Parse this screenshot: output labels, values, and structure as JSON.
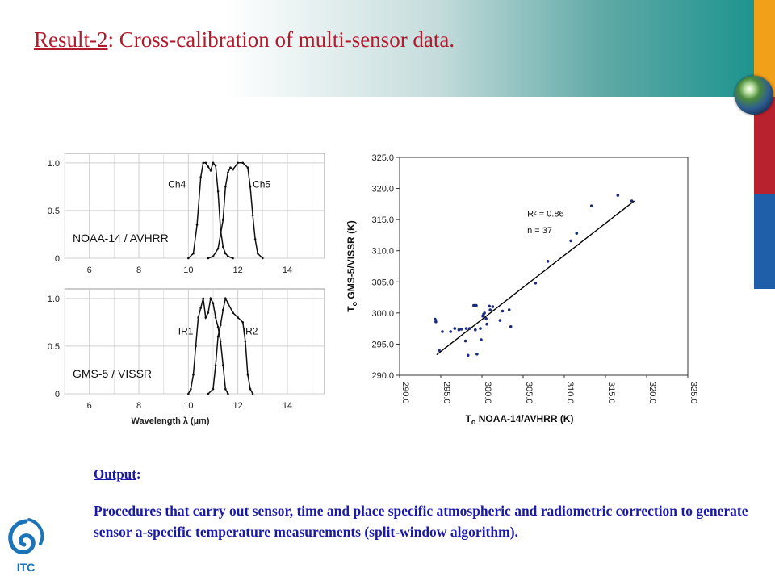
{
  "slide": {
    "title_underlined": "Result-2",
    "title_rest": ": Cross-calibration of multi-sensor data.",
    "output_heading": "Output",
    "output_colon": ":",
    "output_text": "Procedures that carry out sensor, time and place specific atmospheric and radiometric correction to generate sensor a-specific temperature measurements (split-window algorithm).",
    "logo_text": "ITC",
    "colors": {
      "title": "#b01c2c",
      "body_text": "#1a1aa8",
      "stripe_orange": "#f0a019",
      "stripe_red": "#b8222e",
      "stripe_blue": "#1f5ea8"
    }
  },
  "chart_data": [
    {
      "type": "line",
      "panel": "top",
      "label": "NOAA-14 / AVHRR",
      "x_ticks": [
        "6",
        "8",
        "10",
        "12",
        "14"
      ],
      "y_ticks": [
        "0",
        "0.5",
        "1.0"
      ],
      "xlim": [
        5,
        15.5
      ],
      "ylim": [
        0,
        1.1
      ],
      "grid": true,
      "series": [
        {
          "name": "Ch4",
          "x": [
            10.0,
            10.2,
            10.35,
            10.5,
            10.6,
            10.7,
            10.8,
            10.9,
            11.0,
            11.1,
            11.2,
            11.3,
            11.4,
            11.5,
            11.6,
            11.8
          ],
          "y": [
            0,
            0.05,
            0.35,
            0.85,
            1.0,
            1.0,
            0.96,
            0.92,
            1.0,
            0.97,
            0.7,
            0.3,
            0.12,
            0.05,
            0.02,
            0
          ]
        },
        {
          "name": "Ch5",
          "x": [
            10.8,
            11.0,
            11.2,
            11.4,
            11.5,
            11.6,
            11.7,
            11.8,
            12.0,
            12.2,
            12.4,
            12.5,
            12.6,
            12.7,
            12.8,
            13.0
          ],
          "y": [
            0,
            0.02,
            0.1,
            0.4,
            0.75,
            0.9,
            0.95,
            0.93,
            1.0,
            1.0,
            0.95,
            0.75,
            0.45,
            0.2,
            0.05,
            0
          ]
        }
      ]
    },
    {
      "type": "line",
      "panel": "bottom",
      "label": "GMS-5 / VISSR",
      "xlabel": "Wavelength λ (µm)",
      "x_ticks": [
        "6",
        "8",
        "10",
        "12",
        "14"
      ],
      "y_ticks": [
        "0",
        "0.5",
        "1.0"
      ],
      "xlim": [
        5,
        15.5
      ],
      "ylim": [
        0,
        1.1
      ],
      "grid": true,
      "series": [
        {
          "name": "IR1",
          "x": [
            10.0,
            10.1,
            10.2,
            10.3,
            10.4,
            10.5,
            10.6,
            10.7,
            10.8,
            10.9,
            11.0,
            11.1,
            11.2,
            11.3,
            11.4,
            11.5,
            11.6
          ],
          "y": [
            0,
            0.05,
            0.2,
            0.5,
            0.8,
            0.9,
            1.0,
            0.8,
            0.85,
            1.0,
            0.95,
            0.8,
            0.7,
            0.55,
            0.3,
            0.05,
            0
          ]
        },
        {
          "name": "IR2",
          "x": [
            10.8,
            11.0,
            11.1,
            11.2,
            11.3,
            11.4,
            11.5,
            11.6,
            11.8,
            12.0,
            12.2,
            12.3,
            12.4,
            12.5,
            12.6
          ],
          "y": [
            0,
            0.05,
            0.3,
            0.6,
            0.72,
            0.88,
            1.0,
            0.95,
            0.85,
            0.8,
            0.75,
            0.55,
            0.2,
            0.05,
            0
          ]
        }
      ]
    },
    {
      "type": "scatter",
      "panel": "scatter",
      "xlabel_main": "T",
      "xlabel_sub": "o",
      "xlabel_rest": " NOAA-14/AVHRR (K)",
      "ylabel_main": "T",
      "ylabel_sub": "o",
      "ylabel_rest": " GMS-5/VISSR (K)",
      "x_ticks": [
        "290.0",
        "295.0",
        "300.0",
        "305.0",
        "310.0",
        "315.0",
        "320.0",
        "325.0"
      ],
      "y_ticks": [
        "290.0",
        "295.0",
        "300.0",
        "305.0",
        "310.0",
        "315.0",
        "320.0",
        "325.0"
      ],
      "xlim": [
        290,
        325
      ],
      "ylim": [
        290,
        325
      ],
      "r2_label": "R² = 0.86",
      "n_label": "n = 37",
      "fit_line": {
        "x": [
          294.5,
          318.5
        ],
        "y": [
          293.3,
          318.0
        ]
      },
      "points": [
        [
          294.3,
          299.0
        ],
        [
          294.4,
          298.6
        ],
        [
          294.8,
          294.0
        ],
        [
          295.2,
          297.0
        ],
        [
          296.2,
          297.0
        ],
        [
          296.7,
          297.5
        ],
        [
          297.2,
          297.3
        ],
        [
          297.5,
          297.4
        ],
        [
          298.0,
          295.5
        ],
        [
          298.1,
          297.5
        ],
        [
          298.3,
          293.2
        ],
        [
          298.5,
          297.5
        ],
        [
          299.0,
          301.2
        ],
        [
          299.3,
          301.2
        ],
        [
          299.4,
          293.4
        ],
        [
          299.8,
          297.5
        ],
        [
          299.9,
          295.7
        ],
        [
          300.1,
          299.5
        ],
        [
          300.2,
          299.8
        ],
        [
          300.3,
          300.0
        ],
        [
          300.6,
          298.2
        ],
        [
          300.9,
          301.1
        ],
        [
          301.0,
          300.5
        ],
        [
          301.3,
          301.0
        ],
        [
          302.2,
          298.8
        ],
        [
          303.3,
          300.5
        ],
        [
          303.5,
          297.8
        ],
        [
          306.5,
          304.8
        ],
        [
          308.0,
          308.3
        ],
        [
          310.8,
          311.6
        ],
        [
          311.5,
          312.8
        ],
        [
          313.3,
          317.2
        ],
        [
          316.5,
          318.9
        ],
        [
          318.2,
          318.0
        ],
        [
          299.2,
          297.3
        ],
        [
          300.5,
          299.1
        ],
        [
          302.5,
          300.3
        ]
      ]
    }
  ]
}
